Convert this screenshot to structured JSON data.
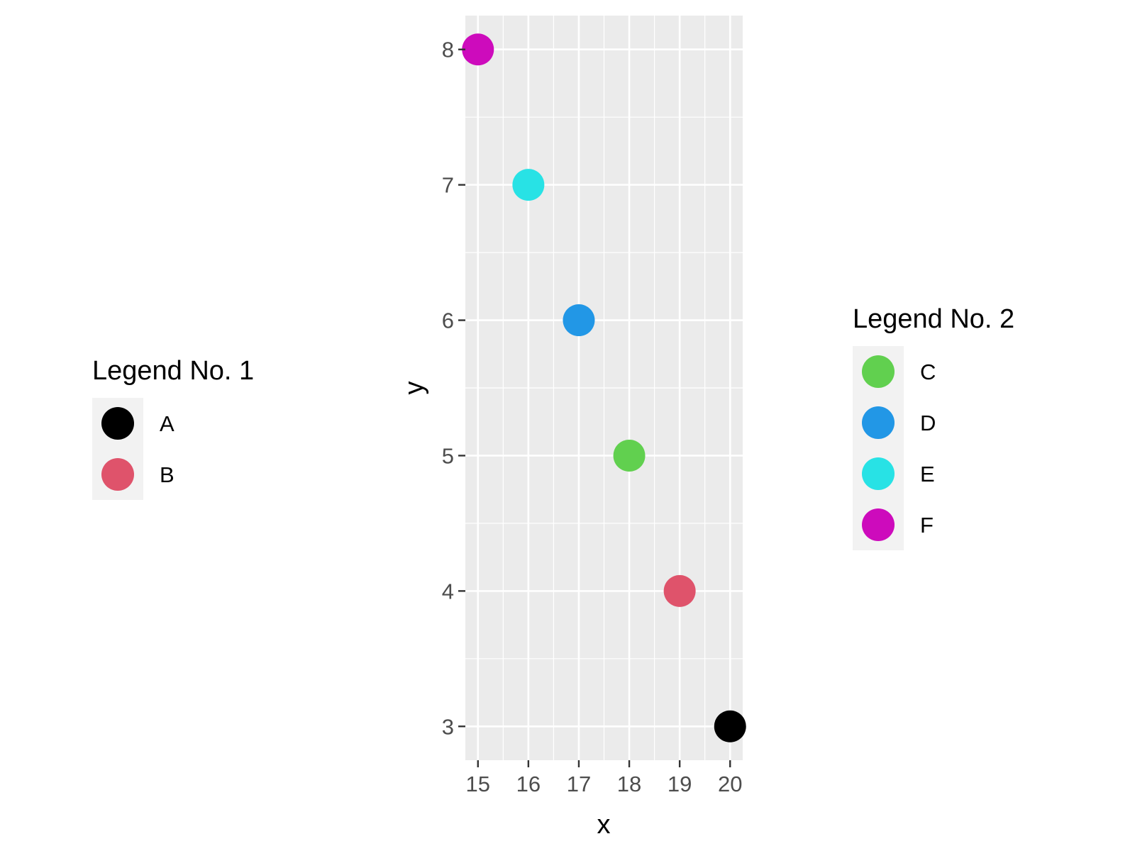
{
  "chart_data": {
    "type": "scatter",
    "title": "",
    "xlabel": "x",
    "ylabel": "y",
    "xlim": [
      14.75,
      20.25
    ],
    "ylim": [
      2.75,
      8.25
    ],
    "x_ticks": [
      15,
      16,
      17,
      18,
      19,
      20
    ],
    "y_ticks": [
      3,
      4,
      5,
      6,
      7,
      8
    ],
    "grid": true,
    "points": [
      {
        "x": 15,
        "y": 8,
        "group": "F"
      },
      {
        "x": 16,
        "y": 7,
        "group": "E"
      },
      {
        "x": 17,
        "y": 6,
        "group": "D"
      },
      {
        "x": 18,
        "y": 5,
        "group": "C"
      },
      {
        "x": 19,
        "y": 4,
        "group": "B"
      },
      {
        "x": 20,
        "y": 3,
        "group": "A"
      }
    ],
    "legends": [
      {
        "title": "Legend No. 1",
        "placement": "left",
        "entries": [
          {
            "label": "A",
            "color": "#000000"
          },
          {
            "label": "B",
            "color": "#DF536B"
          }
        ]
      },
      {
        "title": "Legend No. 2",
        "placement": "right",
        "entries": [
          {
            "label": "C",
            "color": "#61D04F"
          },
          {
            "label": "D",
            "color": "#2297E6"
          },
          {
            "label": "E",
            "color": "#28E2E5"
          },
          {
            "label": "F",
            "color": "#CD0BBC"
          }
        ]
      }
    ]
  }
}
